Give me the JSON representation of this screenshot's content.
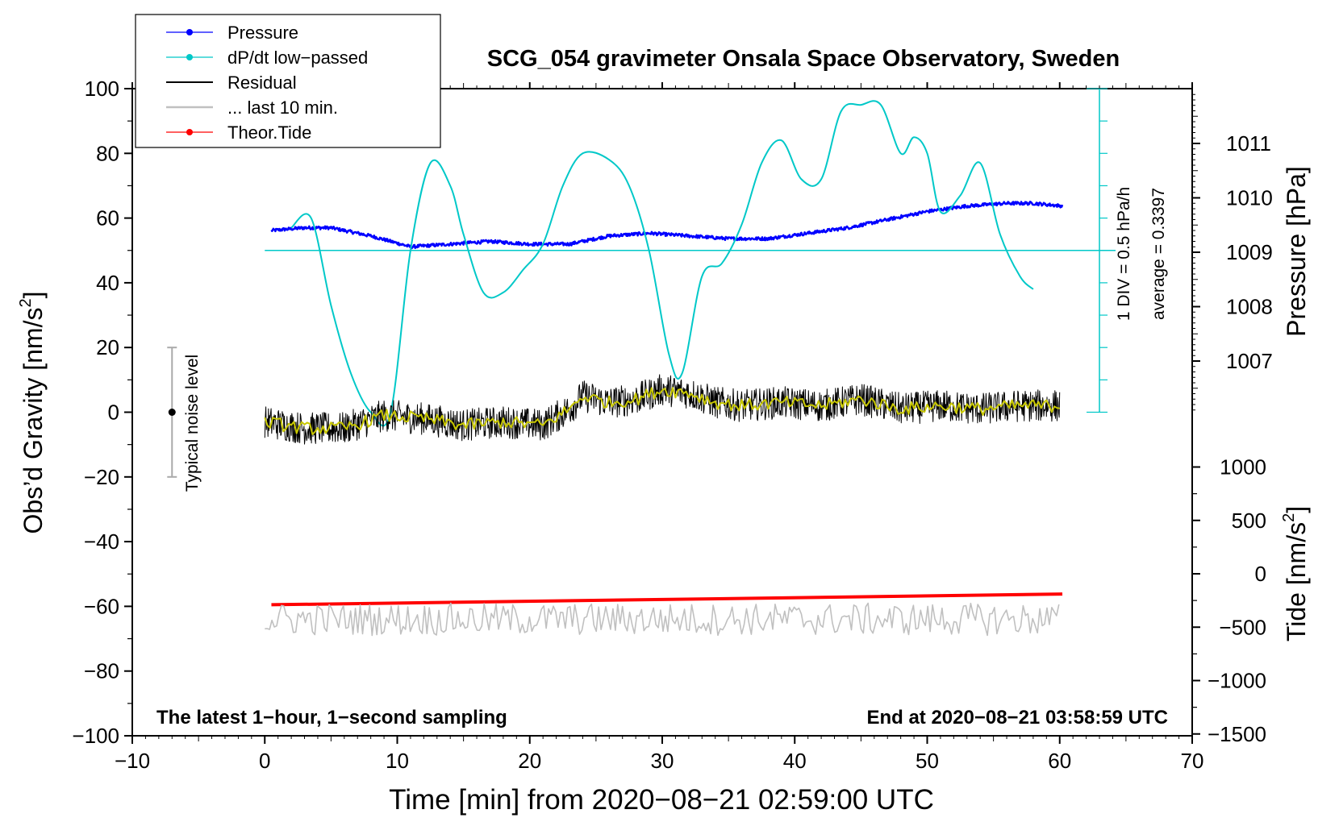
{
  "chart_data": {
    "type": "line",
    "title": "SCG_054 gravimeter Onsala Space Observatory, Sweden",
    "xlabel": "Time [min] from 2020−08−21 02:59:00 UTC",
    "ylabel_left": "Obs’d Gravity [nm/s",
    "ylabel_left_sup": "2",
    "ylabel_left_end": "]",
    "ylabel_right_top": "Pressure [hPa]",
    "ylabel_right_bottom": "Tide [nm/s",
    "ylabel_right_bottom_sup": "2",
    "ylabel_right_bottom_end": "]",
    "xlim": [
      -10,
      70
    ],
    "ylim_left": [
      -100,
      100
    ],
    "x_ticks": [
      "−10",
      "0",
      "10",
      "20",
      "30",
      "40",
      "50",
      "60",
      "70"
    ],
    "x_tick_values": [
      -10,
      0,
      10,
      20,
      30,
      40,
      50,
      60,
      70
    ],
    "y_ticks_left": [
      "−100",
      "−80",
      "−60",
      "−40",
      "−20",
      "0",
      "20",
      "40",
      "60",
      "80",
      "100"
    ],
    "y_tick_values_left": [
      -100,
      -80,
      -60,
      -40,
      -20,
      0,
      20,
      40,
      60,
      80,
      100
    ],
    "pressure_axis": {
      "range": [
        1006,
        1012
      ],
      "tick_values": [
        1007,
        1008,
        1009,
        1010,
        1011
      ],
      "ticks": [
        "1007",
        "1008",
        "1009",
        "1010",
        "1011"
      ]
    },
    "tide_axis": {
      "range": [
        -1500,
        1500
      ],
      "tick_values": [
        -1500,
        -1000,
        -500,
        0,
        500,
        1000
      ],
      "ticks": [
        "−1500",
        "−1000",
        "−500",
        "0",
        "500",
        "1000"
      ]
    },
    "annotations": {
      "bottom_left": "The latest 1−hour, 1−second sampling",
      "bottom_right": "End at 2020−08−21 03:58:59 UTC",
      "div_label": "1 DIV = 0.5 hPa/h",
      "average_label": "average = 0.3397",
      "noise_label": "Typical noise level"
    },
    "legend": [
      {
        "label": "Pressure",
        "color": "#0000ff",
        "marker": true
      },
      {
        "label": "dP/dt low−passed",
        "color": "#00c8c8",
        "marker": true
      },
      {
        "label": "Residual",
        "color": "#000000",
        "marker": false
      },
      {
        "label": "... last 10 min.",
        "color": "#c0c0c0",
        "marker": false
      },
      {
        "label": "Theor.Tide",
        "color": "#ff0000",
        "marker": true
      }
    ],
    "noise_bar": {
      "x": -7,
      "center": 0,
      "low": -20,
      "high": 20
    },
    "dpdt_baseline": 50,
    "dpdt_scale_bar": {
      "x": 63,
      "low": 0,
      "high": 100
    },
    "series": [
      {
        "name": "Pressure",
        "color": "#0000ff",
        "axis": "pressure",
        "x": [
          0.5,
          3,
          5,
          8,
          11,
          14,
          17,
          20,
          23,
          26,
          29,
          32,
          35,
          38,
          41,
          44,
          47,
          50,
          53,
          56,
          58,
          60.2
        ],
        "values": [
          1009.4,
          1009.45,
          1009.45,
          1009.3,
          1009.1,
          1009.15,
          1009.2,
          1009.15,
          1009.15,
          1009.3,
          1009.35,
          1009.3,
          1009.25,
          1009.25,
          1009.35,
          1009.45,
          1009.6,
          1009.75,
          1009.85,
          1009.9,
          1009.9,
          1009.85
        ]
      },
      {
        "name": "dP/dt low−passed",
        "color": "#00c8c8",
        "axis": "left",
        "x": [
          2,
          3.5,
          5,
          6.5,
          8,
          9.5,
          11,
          12.5,
          14,
          15,
          16.5,
          18,
          19.5,
          21,
          22.5,
          24,
          26,
          27.5,
          29,
          30.5,
          31.5,
          33,
          34.5,
          36,
          37.5,
          39,
          40.5,
          42,
          43.5,
          45,
          46.5,
          48,
          49,
          50,
          51,
          52.5,
          54,
          55.5,
          57,
          58
        ],
        "values": [
          57,
          60,
          33,
          12,
          0,
          0,
          50,
          77,
          70,
          55,
          37,
          37,
          44,
          52,
          70,
          80,
          78,
          70,
          50,
          18,
          12,
          42,
          46,
          58,
          77,
          84,
          72,
          72,
          93,
          95,
          95,
          80,
          85,
          80,
          62,
          67,
          77,
          55,
          42,
          38
        ]
      },
      {
        "name": "Residual",
        "color": "#000000",
        "axis": "left",
        "x": [
          0,
          3,
          6,
          9,
          12,
          15,
          18,
          21,
          23,
          24,
          26,
          28,
          30,
          32,
          34,
          36,
          39,
          42,
          45,
          48,
          51,
          54,
          57,
          60
        ],
        "values": [
          -3,
          -5,
          -5,
          -1,
          -2,
          -4,
          -3,
          -4,
          1,
          5,
          3,
          4,
          7,
          6,
          3,
          2,
          3,
          2,
          4,
          1,
          2,
          1,
          2,
          2
        ],
        "noise": 5
      },
      {
        "name": "Residual smoothed",
        "color": "#c8c800",
        "axis": "left",
        "x": [
          0,
          3,
          6,
          9,
          12,
          15,
          18,
          21,
          23,
          24,
          26,
          28,
          30,
          32,
          34,
          36,
          39,
          42,
          45,
          48,
          51,
          54,
          57,
          60
        ],
        "values": [
          -3,
          -5,
          -5,
          -1,
          -2,
          -4,
          -3,
          -4,
          1,
          5,
          3,
          4,
          7,
          6,
          3,
          2,
          3,
          2,
          4,
          1,
          2,
          1,
          2,
          2
        ],
        "noise": 2
      },
      {
        "name": "Theor.Tide",
        "color": "#ff0000",
        "axis": "tide",
        "x": [
          0.5,
          60.2
        ],
        "values": [
          -290,
          -190
        ]
      },
      {
        "name": "... last 10 min.",
        "color": "#c0c0c0",
        "axis": "left",
        "x": [
          0,
          60
        ],
        "values": [
          -64,
          -64
        ],
        "noise": 5
      }
    ]
  }
}
